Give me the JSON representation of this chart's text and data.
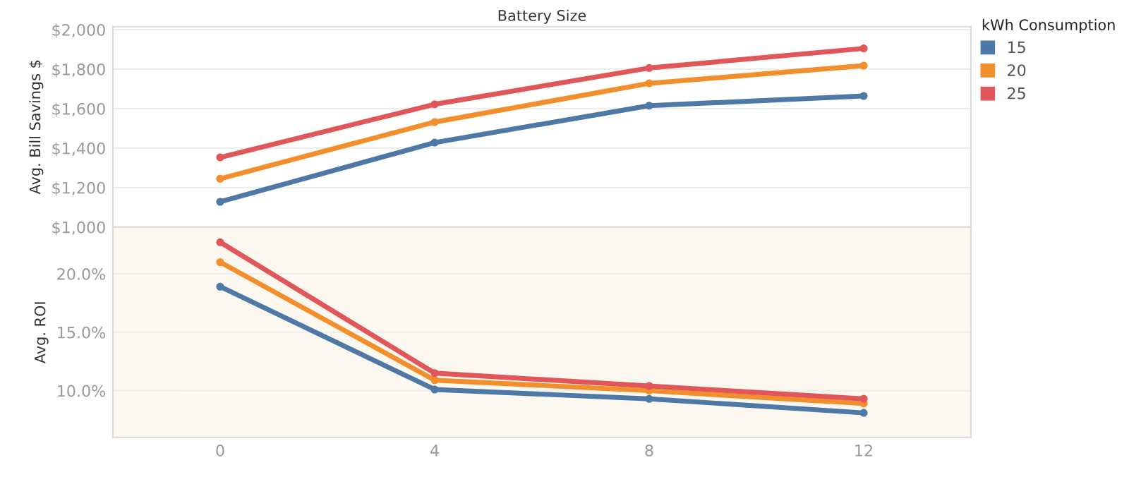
{
  "chart_data": [
    {
      "type": "line",
      "title": "Battery Size",
      "ylabel": "Avg. Bill Savings $",
      "legend_title": "kWh Consumption",
      "legend": "top right",
      "grid": "y",
      "marker": "circle",
      "line_style": "solid",
      "tick_labels": "y",
      "x": [
        0,
        4,
        8,
        12
      ],
      "xlim": [
        -2,
        14
      ],
      "ylim": [
        1000,
        2015
      ],
      "yticks": [
        {
          "value": 1000,
          "label": "$1,000"
        },
        {
          "value": 1200,
          "label": "$1,200"
        },
        {
          "value": 1400,
          "label": "$1,400"
        },
        {
          "value": 1600,
          "label": "$1,600"
        },
        {
          "value": 1800,
          "label": "$1,800"
        },
        {
          "value": 2000,
          "label": "$2,000"
        }
      ],
      "series": [
        {
          "name": "15",
          "color": "#4e79a7",
          "values": [
            1128,
            1428,
            1615,
            1664
          ]
        },
        {
          "name": "20",
          "color": "#f28e2b",
          "values": [
            1245,
            1532,
            1728,
            1818
          ]
        },
        {
          "name": "25",
          "color": "#e15759",
          "values": [
            1353,
            1622,
            1806,
            1905
          ]
        }
      ]
    },
    {
      "type": "line",
      "ylabel": "Avg. ROI",
      "grid": "y",
      "marker": "circle",
      "line_style": "solid",
      "x": [
        0,
        4,
        8,
        12
      ],
      "xlim": [
        -2,
        14
      ],
      "xticks": [
        0,
        4,
        8,
        12
      ],
      "ylim": [
        6,
        24
      ],
      "yticks": [
        {
          "value": 10,
          "label": "10.0%"
        },
        {
          "value": 15,
          "label": "15.0%"
        },
        {
          "value": 20,
          "label": "20.0%"
        }
      ],
      "series": [
        {
          "color": "#4e79a7",
          "values": [
            18.9,
            10.1,
            9.3,
            8.1
          ]
        },
        {
          "color": "#f28e2b",
          "values": [
            21.0,
            10.9,
            10.0,
            8.9
          ]
        },
        {
          "color": "#e15759",
          "values": [
            22.7,
            11.5,
            10.4,
            9.3
          ]
        }
      ]
    }
  ]
}
